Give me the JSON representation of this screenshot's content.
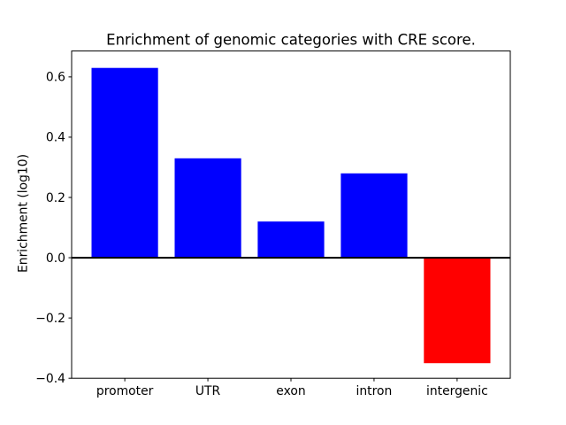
{
  "chart_data": {
    "type": "bar",
    "title": "Enrichment of genomic categories with CRE score.",
    "ylabel": "Enrichment (log10)",
    "xlabel": "",
    "categories": [
      "promoter",
      "UTR",
      "exon",
      "intron",
      "intergenic"
    ],
    "values": [
      0.63,
      0.33,
      0.12,
      0.28,
      -0.35
    ],
    "bar_colors": [
      "#0000ff",
      "#0000ff",
      "#0000ff",
      "#0000ff",
      "#ff0000"
    ],
    "positive_color": "#0000ff",
    "negative_color": "#ff0000",
    "bar_width": 0.8,
    "xlim": [
      -0.64,
      4.64
    ],
    "ylim": [
      -0.4,
      0.686
    ],
    "y_ticks": [
      {
        "value": -0.4,
        "label": "−0.4"
      },
      {
        "value": -0.2,
        "label": "−0.2"
      },
      {
        "value": 0.0,
        "label": "0.0"
      },
      {
        "value": 0.2,
        "label": "0.2"
      },
      {
        "value": 0.4,
        "label": "0.4"
      },
      {
        "value": 0.6,
        "label": "0.6"
      }
    ],
    "zero_line": {
      "value": 0.0,
      "color": "#000000",
      "width": 2
    },
    "grid": false,
    "legend": null,
    "background": "#ffffff"
  }
}
